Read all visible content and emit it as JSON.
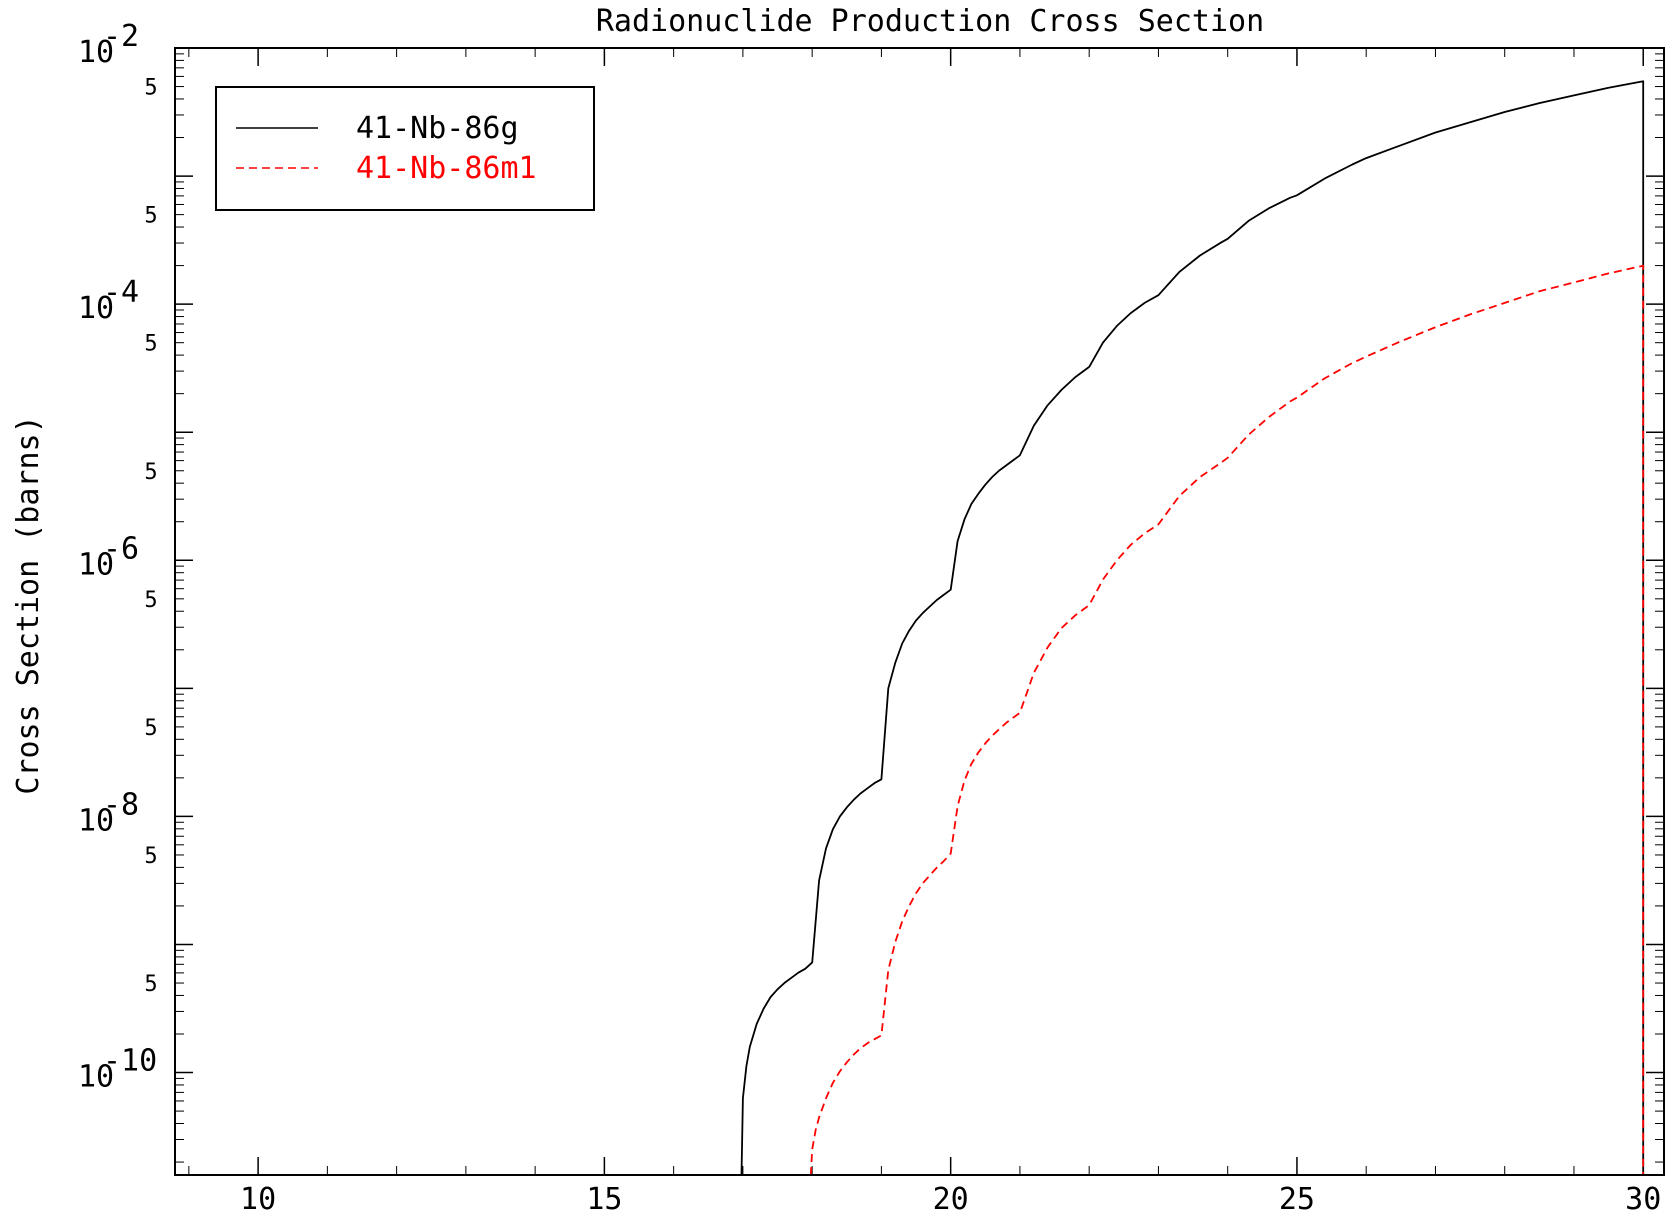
{
  "chart_data": {
    "type": "line",
    "title": "Radionuclide Production Cross Section",
    "xlabel": "",
    "ylabel": "Cross Section (barns)",
    "xlim": [
      8.8,
      30.3
    ],
    "ylim_log10": [
      -10.8,
      -2.0
    ],
    "y_scale": "log",
    "grid": false,
    "legend_position": "top-left",
    "x_ticks": [
      {
        "value": 10,
        "label": "10"
      },
      {
        "value": 15,
        "label": "15"
      },
      {
        "value": 20,
        "label": "20"
      },
      {
        "value": 25,
        "label": "25"
      },
      {
        "value": 30,
        "label": "30"
      }
    ],
    "y_ticks": [
      {
        "exp": -2,
        "base": "10",
        "sup": "-2"
      },
      {
        "exp": -4,
        "base": "10",
        "sup": "-4"
      },
      {
        "exp": -6,
        "base": "10",
        "sup": "-6"
      },
      {
        "exp": -8,
        "base": "10",
        "sup": "-8"
      },
      {
        "exp": -10,
        "base": "10",
        "sup": "-10"
      }
    ],
    "y_minor_label": "5",
    "y_minor_labels_log10": [
      -2.301,
      -3.301,
      -4.301,
      -5.301,
      -6.301,
      -7.301,
      -8.301,
      -9.301
    ],
    "series": [
      {
        "name": "41-Nb-86g",
        "color": "#000000",
        "dash": "solid",
        "x": [
          16.98,
          17.0,
          17.05,
          17.1,
          17.2,
          17.3,
          17.4,
          17.5,
          17.6,
          17.7,
          17.8,
          17.9,
          18.0,
          18.1,
          18.2,
          18.3,
          18.4,
          18.5,
          18.6,
          18.7,
          18.8,
          18.9,
          19.0,
          19.1,
          19.2,
          19.3,
          19.4,
          19.5,
          19.6,
          19.7,
          19.8,
          19.9,
          20.0,
          20.1,
          20.2,
          20.3,
          20.4,
          20.5,
          20.6,
          20.7,
          20.8,
          20.9,
          21.0,
          21.2,
          21.4,
          21.6,
          21.8,
          22.0,
          22.2,
          22.4,
          22.6,
          22.8,
          23.0,
          23.3,
          23.6,
          23.9,
          24.0,
          24.3,
          24.6,
          24.9,
          25.0,
          25.4,
          25.8,
          26.0,
          26.5,
          27.0,
          27.5,
          28.0,
          28.5,
          29.0,
          29.5,
          30.0,
          30.0
        ],
        "log10_y": [
          -10.83,
          -10.2,
          -9.95,
          -9.8,
          -9.62,
          -9.5,
          -9.41,
          -9.35,
          -9.3,
          -9.26,
          -9.22,
          -9.19,
          -9.14,
          -8.5,
          -8.25,
          -8.1,
          -8.0,
          -7.93,
          -7.87,
          -7.82,
          -7.78,
          -7.74,
          -7.71,
          -7.0,
          -6.8,
          -6.65,
          -6.55,
          -6.47,
          -6.41,
          -6.36,
          -6.31,
          -6.27,
          -6.23,
          -5.85,
          -5.68,
          -5.56,
          -5.48,
          -5.41,
          -5.35,
          -5.3,
          -5.26,
          -5.22,
          -5.18,
          -4.95,
          -4.79,
          -4.67,
          -4.57,
          -4.49,
          -4.3,
          -4.17,
          -4.07,
          -3.99,
          -3.93,
          -3.75,
          -3.62,
          -3.52,
          -3.49,
          -3.35,
          -3.25,
          -3.17,
          -3.15,
          -3.02,
          -2.91,
          -2.86,
          -2.76,
          -2.66,
          -2.58,
          -2.5,
          -2.43,
          -2.37,
          -2.31,
          -2.26,
          -10.83
        ]
      },
      {
        "name": "41-Nb-86m1",
        "color": "#ff0000",
        "dash": "dashed",
        "x": [
          17.98,
          18.0,
          18.05,
          18.1,
          18.2,
          18.3,
          18.4,
          18.5,
          18.6,
          18.7,
          18.8,
          18.9,
          19.0,
          19.1,
          19.2,
          19.3,
          19.4,
          19.5,
          19.6,
          19.7,
          19.8,
          19.9,
          20.0,
          20.1,
          20.2,
          20.3,
          20.4,
          20.5,
          20.6,
          20.7,
          20.8,
          20.9,
          21.0,
          21.2,
          21.4,
          21.6,
          21.8,
          22.0,
          22.2,
          22.4,
          22.6,
          22.8,
          23.0,
          23.3,
          23.6,
          23.9,
          24.0,
          24.3,
          24.6,
          24.9,
          25.0,
          25.4,
          25.8,
          26.0,
          26.5,
          27.0,
          27.5,
          28.0,
          28.5,
          29.0,
          29.5,
          30.0,
          30.0
        ],
        "log10_y": [
          -10.83,
          -10.6,
          -10.45,
          -10.35,
          -10.2,
          -10.08,
          -9.99,
          -9.92,
          -9.86,
          -9.81,
          -9.77,
          -9.74,
          -9.71,
          -9.2,
          -8.98,
          -8.82,
          -8.7,
          -8.6,
          -8.52,
          -8.46,
          -8.4,
          -8.35,
          -8.29,
          -7.92,
          -7.72,
          -7.59,
          -7.5,
          -7.43,
          -7.37,
          -7.32,
          -7.27,
          -7.23,
          -7.19,
          -6.88,
          -6.68,
          -6.53,
          -6.43,
          -6.35,
          -6.15,
          -6.0,
          -5.88,
          -5.79,
          -5.72,
          -5.5,
          -5.35,
          -5.24,
          -5.2,
          -5.02,
          -4.88,
          -4.76,
          -4.73,
          -4.58,
          -4.46,
          -4.41,
          -4.29,
          -4.18,
          -4.08,
          -3.99,
          -3.9,
          -3.83,
          -3.76,
          -3.7,
          -10.83
        ]
      }
    ]
  }
}
